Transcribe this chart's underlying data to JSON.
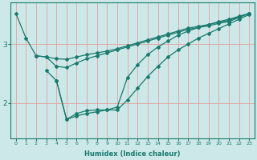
{
  "xlabel": "Humidex (Indice chaleur)",
  "bg_color": "#cce8e8",
  "line_color": "#1a7a6e",
  "grid_color": "#e8a0a0",
  "xlim": [
    -0.5,
    23.5
  ],
  "ylim": [
    1.4,
    3.7
  ],
  "yticks": [
    2,
    3
  ],
  "xticks": [
    0,
    1,
    2,
    3,
    4,
    5,
    6,
    7,
    8,
    9,
    10,
    11,
    12,
    13,
    14,
    15,
    16,
    17,
    18,
    19,
    20,
    21,
    22,
    23
  ],
  "lines": [
    {
      "x": [
        0,
        1,
        2,
        3,
        4,
        5,
        6,
        7,
        8,
        9,
        10,
        11,
        12,
        13,
        14,
        15,
        16,
        17,
        18,
        19,
        20,
        21,
        22,
        23
      ],
      "y": [
        3.52,
        3.1,
        2.8,
        2.78,
        2.75,
        2.74,
        2.78,
        2.82,
        2.85,
        2.88,
        2.92,
        2.97,
        3.02,
        3.07,
        3.12,
        3.17,
        3.22,
        3.27,
        3.3,
        3.33,
        3.37,
        3.4,
        3.46,
        3.52
      ]
    },
    {
      "x": [
        2,
        3,
        4,
        5,
        6,
        7,
        8,
        9,
        10,
        11,
        12,
        13,
        14,
        15,
        16,
        17,
        18,
        19,
        20,
        21,
        22,
        23
      ],
      "y": [
        2.8,
        2.78,
        2.62,
        2.6,
        2.68,
        2.75,
        2.8,
        2.85,
        2.9,
        2.95,
        3.0,
        3.05,
        3.1,
        3.15,
        3.2,
        3.25,
        3.28,
        3.31,
        3.35,
        3.38,
        3.45,
        3.52
      ]
    },
    {
      "x": [
        3,
        4,
        5,
        6,
        7,
        8,
        9,
        10,
        11,
        12,
        13,
        14,
        15,
        16,
        17,
        18,
        19,
        20,
        21,
        22,
        23
      ],
      "y": [
        2.55,
        2.38,
        1.72,
        1.78,
        1.82,
        1.85,
        1.88,
        1.88,
        2.05,
        2.25,
        2.45,
        2.62,
        2.78,
        2.9,
        3.0,
        3.1,
        3.18,
        3.26,
        3.34,
        3.42,
        3.5
      ]
    },
    {
      "x": [
        4,
        5,
        6,
        7,
        8,
        9,
        10,
        11,
        12,
        13,
        14,
        15,
        16,
        17,
        18,
        19,
        20,
        21,
        22,
        23
      ],
      "y": [
        2.38,
        1.72,
        1.82,
        1.87,
        1.88,
        1.88,
        1.93,
        2.43,
        2.65,
        2.82,
        2.95,
        3.05,
        3.15,
        3.22,
        3.28,
        3.33,
        3.38,
        3.42,
        3.47,
        3.52
      ]
    }
  ]
}
